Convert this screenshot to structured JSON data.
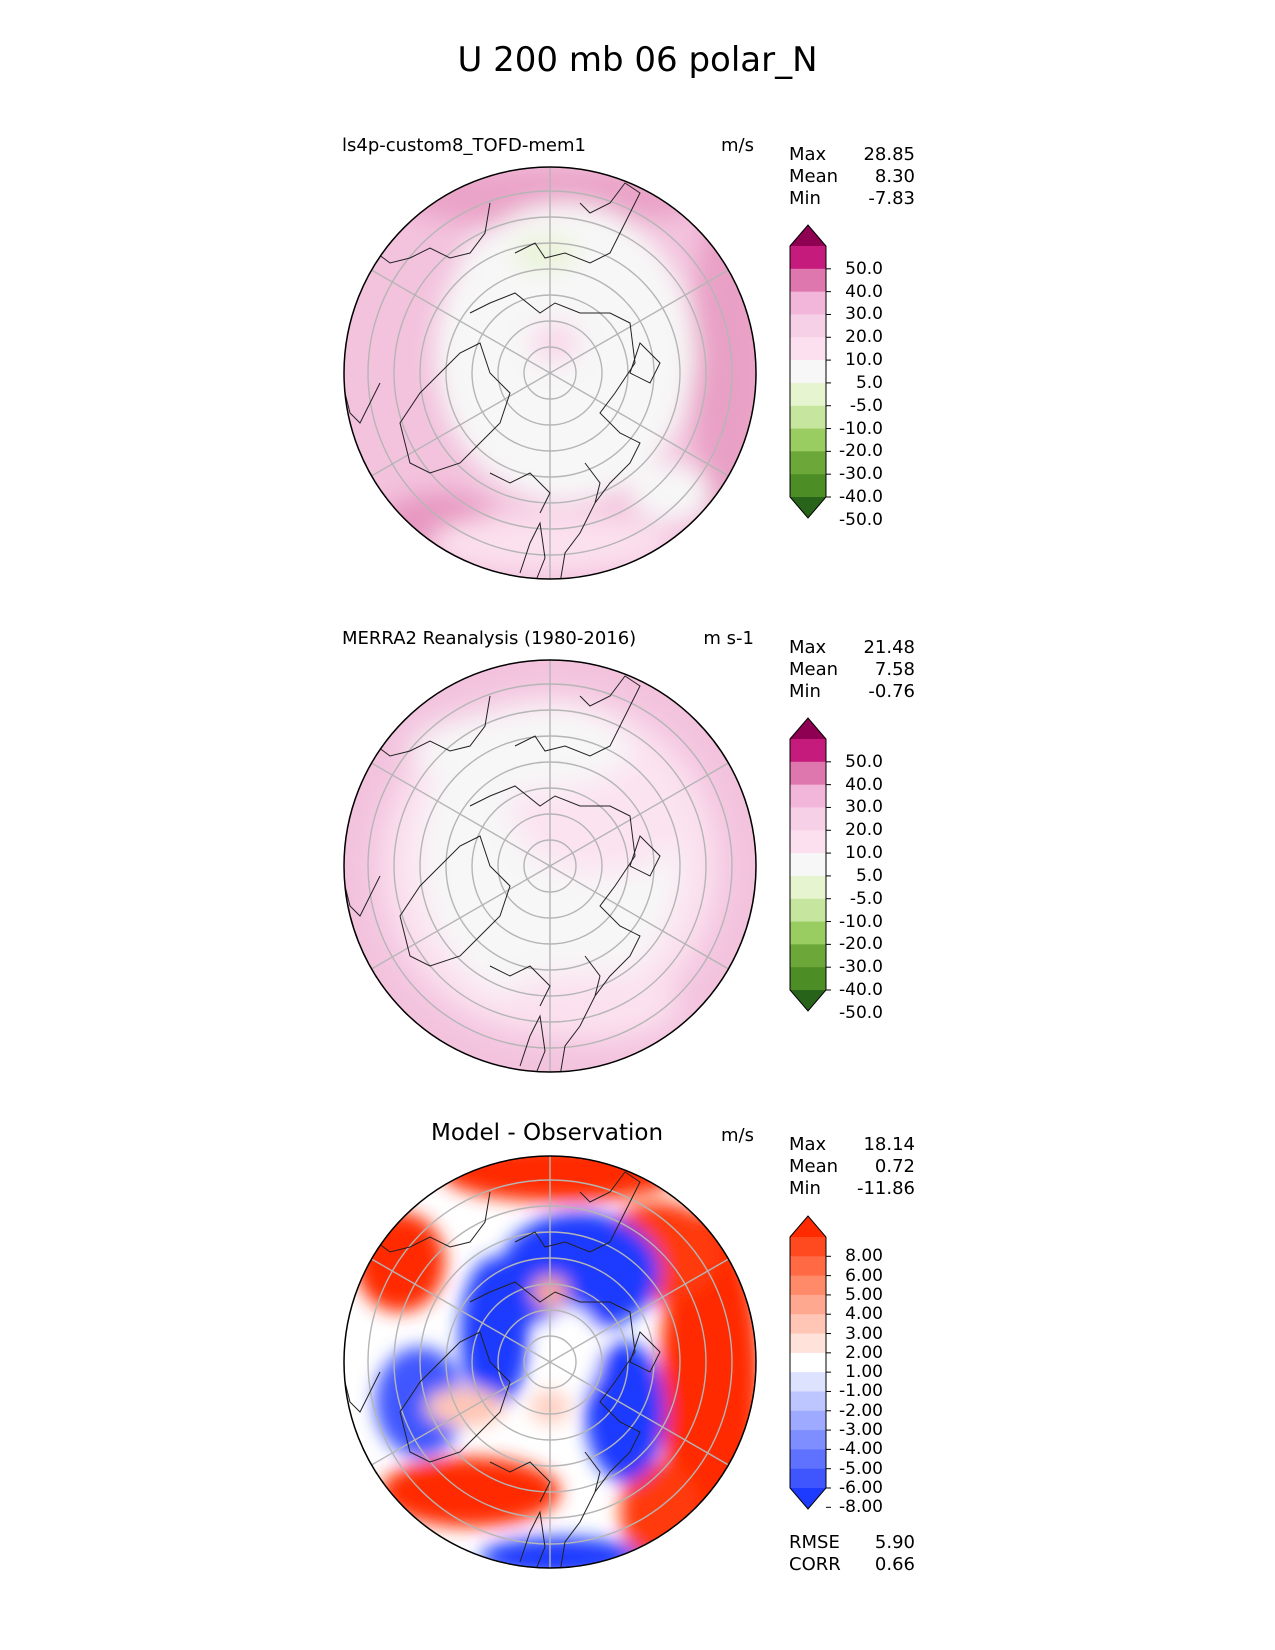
{
  "title": "U 200 mb 06 polar_N",
  "panels": [
    {
      "label": "ls4p-custom8_TOFD-mem1",
      "units": "m/s",
      "stats": [
        {
          "name": "Max",
          "value": "28.85"
        },
        {
          "name": "Mean",
          "value": "8.30"
        },
        {
          "name": "Min",
          "value": "-7.83"
        }
      ],
      "colorbar": {
        "ticks": [
          "50.0",
          "40.0",
          "30.0",
          "20.0",
          "10.0",
          "5.0",
          "-5.0",
          "-10.0",
          "-20.0",
          "-30.0",
          "-40.0",
          "-50.0"
        ],
        "colors": [
          "#8e0152",
          "#c51b7d",
          "#de77ae",
          "#f1b6da",
          "#f6d0e6",
          "#fde0ef",
          "#f7f7f7",
          "#e6f5d0",
          "#c6e6a0",
          "#9acd61",
          "#6ba839",
          "#4d8d26",
          "#276419"
        ]
      }
    },
    {
      "label": "MERRA2 Reanalysis (1980-2016)",
      "units": "m s-1",
      "stats": [
        {
          "name": "Max",
          "value": "21.48"
        },
        {
          "name": "Mean",
          "value": "7.58"
        },
        {
          "name": "Min",
          "value": "-0.76"
        }
      ],
      "colorbar": {
        "ticks": [
          "50.0",
          "40.0",
          "30.0",
          "20.0",
          "10.0",
          "5.0",
          "-5.0",
          "-10.0",
          "-20.0",
          "-30.0",
          "-40.0",
          "-50.0"
        ],
        "colors": [
          "#8e0152",
          "#c51b7d",
          "#de77ae",
          "#f1b6da",
          "#f6d0e6",
          "#fde0ef",
          "#f7f7f7",
          "#e6f5d0",
          "#c6e6a0",
          "#9acd61",
          "#6ba839",
          "#4d8d26",
          "#276419"
        ]
      }
    },
    {
      "label": "Model - Observation",
      "units": "m/s",
      "stats": [
        {
          "name": "Max",
          "value": "18.14"
        },
        {
          "name": "Mean",
          "value": "0.72"
        },
        {
          "name": "Min",
          "value": "-11.86"
        }
      ],
      "extra_stats": [
        {
          "name": "RMSE",
          "value": "5.90"
        },
        {
          "name": "CORR",
          "value": "0.66"
        }
      ],
      "colorbar": {
        "ticks": [
          "8.00",
          "6.00",
          "5.00",
          "4.00",
          "3.00",
          "2.00",
          "1.00",
          "-1.00",
          "-2.00",
          "-3.00",
          "-4.00",
          "-5.00",
          "-6.00",
          "-8.00"
        ],
        "colors": [
          "#ff2a00",
          "#ff4a20",
          "#ff6a45",
          "#ff8a6a",
          "#ffa890",
          "#ffc6b5",
          "#ffe2da",
          "#ffffff",
          "#dde2ff",
          "#bdc6ff",
          "#9eaaff",
          "#7e8eff",
          "#5f72ff",
          "#3f56ff",
          "#1d3bff"
        ]
      }
    }
  ]
}
